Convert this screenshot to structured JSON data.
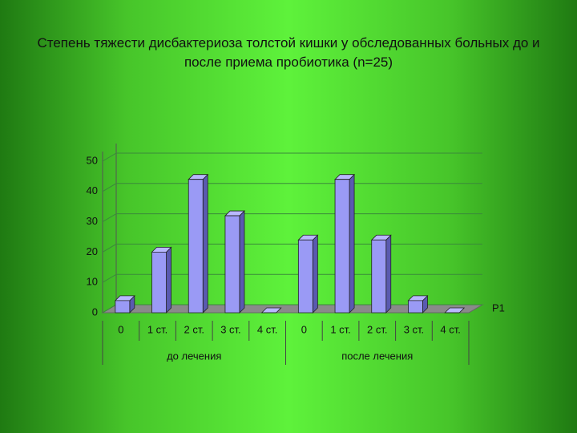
{
  "chart_data": {
    "type": "bar3d",
    "title": "Степень тяжести дисбактериоза толстой кишки у обследованных больных до и после приема пробиотика (n=25)",
    "groups": [
      "до лечения",
      "после лечения"
    ],
    "categories": [
      "0",
      "1 ст.",
      "2 ст.",
      "3 ст.",
      "4 ст.",
      "0",
      "1 ст.",
      "2 ст.",
      "3 ст.",
      "4 ст."
    ],
    "series": [
      {
        "name": "Р1",
        "color": "#9a9af5",
        "values": [
          4,
          20,
          44,
          32,
          0,
          24,
          44,
          24,
          4,
          0
        ]
      }
    ],
    "ylim": [
      0,
      50
    ],
    "yticks": [
      0,
      10,
      20,
      30,
      40,
      50
    ],
    "grid": true,
    "legend": "right"
  }
}
